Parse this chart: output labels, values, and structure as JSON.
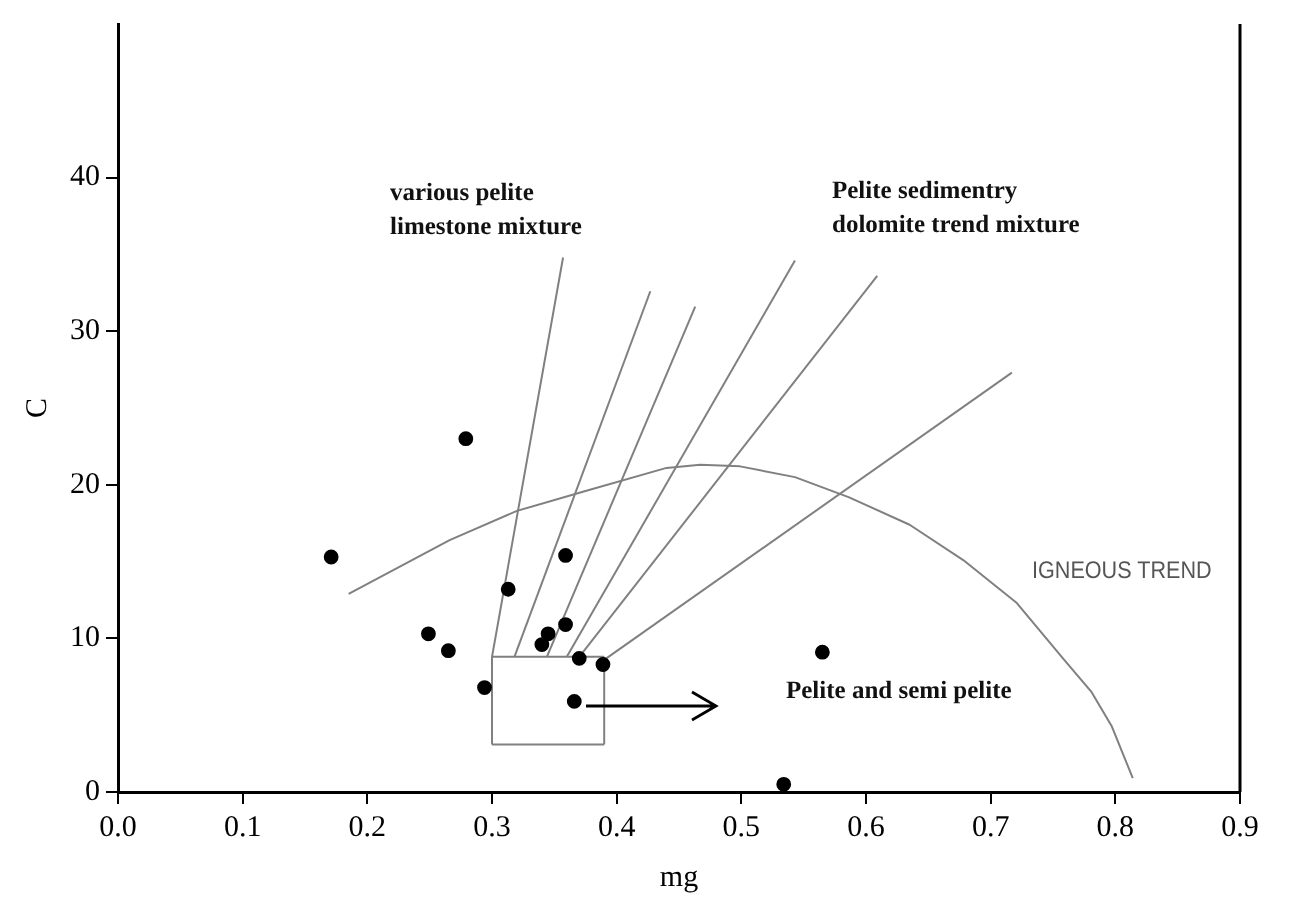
{
  "chart_data": {
    "type": "scatter",
    "xlabel": "mg",
    "ylabel": "C",
    "xlim": [
      0,
      0.9
    ],
    "ylim": [
      0,
      50
    ],
    "xticks": [
      {
        "value": 0,
        "label": "0.0"
      },
      0.1,
      0.2,
      0.3,
      0.4,
      0.5,
      0.6,
      0.7,
      0.8,
      0.9
    ],
    "yticks": [
      0,
      10,
      20,
      30,
      40
    ],
    "grid": false,
    "legend": false,
    "annotations": [
      "various pelite\nlimestone mixture",
      "Pelite sedimentry\ndolomite trend mixture",
      "Pelite and semi pelite",
      "IGNEOUS TREND"
    ],
    "series": [
      {
        "marker": "circle",
        "color": "#000000",
        "x": [
          0.279,
          0.171,
          0.313,
          0.359,
          0.249,
          0.265,
          0.294,
          0.345,
          0.34,
          0.359,
          0.37,
          0.389,
          0.366,
          0.565,
          0.534
        ],
        "values": [
          23.0,
          15.3,
          13.2,
          15.4,
          10.3,
          9.2,
          6.8,
          10.3,
          9.6,
          10.9,
          8.7,
          8.3,
          5.9,
          9.1,
          0.5
        ]
      },
      {
        "type": "line",
        "color": "#808080",
        "x": [
          0.185,
          0.266,
          0.32,
          0.375,
          0.44,
          0.467,
          0.499,
          0.543,
          0.586,
          0.635,
          0.678,
          0.721,
          0.759,
          0.781,
          0.797,
          0.814
        ],
        "values": [
          12.9,
          16.4,
          18.3,
          19.6,
          21.1,
          21.3,
          21.2,
          20.5,
          19.2,
          17.4,
          15.1,
          12.3,
          8.6,
          6.5,
          4.3,
          0.9
        ]
      },
      {
        "type": "line",
        "color": "#808080",
        "x": [
          0.3,
          0.39
        ],
        "values": [
          8.8,
          8.8
        ]
      },
      {
        "type": "line",
        "color": "#808080",
        "x": [
          0.3,
          0.39
        ],
        "values": [
          3.1,
          3.1
        ]
      },
      {
        "type": "line",
        "color": "#808080",
        "x": [
          0.39,
          0.39
        ],
        "values": [
          3.1,
          8.8
        ]
      },
      {
        "type": "line",
        "color": "#808080",
        "x": [
          0.3,
          0.3,
          0.357
        ],
        "values": [
          3.1,
          8.8,
          34.8
        ]
      },
      {
        "type": "line",
        "color": "#808080",
        "x": [
          0.318,
          0.427
        ],
        "values": [
          8.8,
          32.6
        ]
      },
      {
        "type": "line",
        "color": "#808080",
        "x": [
          0.344,
          0.463
        ],
        "values": [
          8.8,
          31.6
        ]
      },
      {
        "type": "line",
        "color": "#808080",
        "x": [
          0.36,
          0.543
        ],
        "values": [
          8.8,
          34.6
        ]
      },
      {
        "type": "line",
        "color": "#808080",
        "x": [
          0.37,
          0.609
        ],
        "values": [
          8.8,
          33.6
        ]
      },
      {
        "type": "line",
        "color": "#808080",
        "x": [
          0.39,
          0.717
        ],
        "values": [
          8.6,
          27.3
        ]
      }
    ]
  }
}
